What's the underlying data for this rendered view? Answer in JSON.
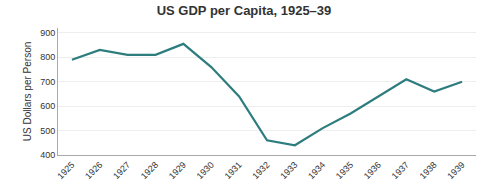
{
  "chart_data": {
    "type": "line",
    "title": "US GDP per Capita, 1925–39",
    "ylabel": "US Dollars per Person",
    "x": [
      1925,
      1926,
      1927,
      1928,
      1929,
      1930,
      1931,
      1932,
      1933,
      1934,
      1935,
      1936,
      1937,
      1938,
      1939
    ],
    "values": [
      790,
      830,
      810,
      810,
      855,
      760,
      640,
      460,
      440,
      510,
      570,
      640,
      710,
      660,
      700
    ],
    "color": "#2e7d7e",
    "xlim": [
      1924.5,
      1939.5
    ],
    "xticks": [
      1925,
      1926,
      1927,
      1928,
      1929,
      1930,
      1931,
      1932,
      1933,
      1934,
      1935,
      1936,
      1937,
      1938,
      1939
    ],
    "ylim": [
      400,
      920
    ],
    "yticks": [
      400,
      500,
      600,
      700,
      800,
      900
    ],
    "grid": "y"
  }
}
